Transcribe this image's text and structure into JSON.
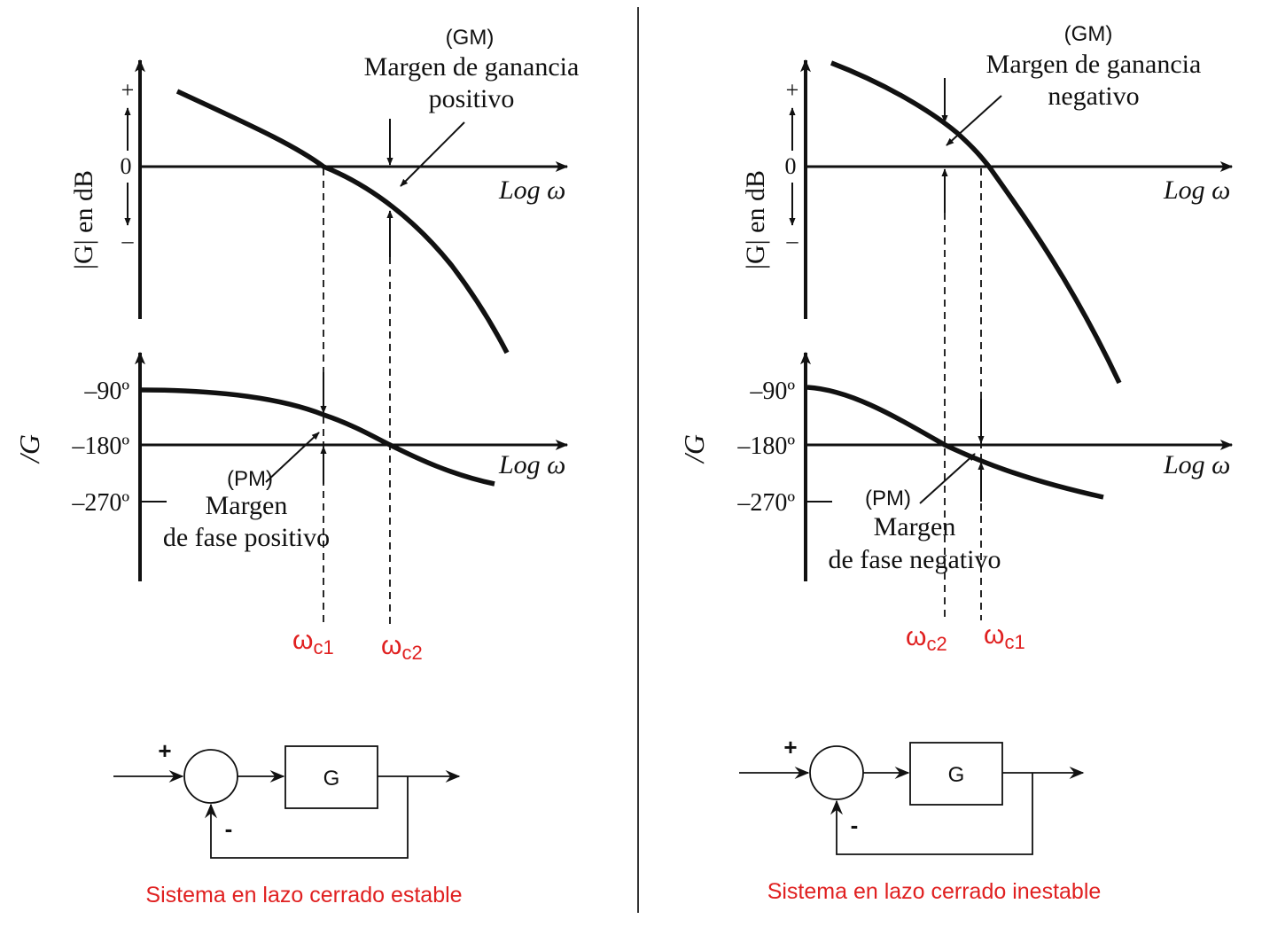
{
  "colors": {
    "ink": "#111111",
    "accent_red": "#e02020",
    "background": "#ffffff"
  },
  "left": {
    "gm_tag": "(GM)",
    "gm_line1": "Margen de ganancia",
    "gm_line2": "positivo",
    "pm_tag": "(PM)",
    "pm_line1": "Margen",
    "pm_line2": "de fase positivo",
    "wc1_base": "ω",
    "wc1_sub": "c1",
    "wc2_base": "ω",
    "wc2_sub": "c2",
    "block_label": "G",
    "plus_sign": "+",
    "minus_sign": "-",
    "caption": "Sistema en lazo cerrado estable"
  },
  "right": {
    "gm_tag": "(GM)",
    "gm_line1": "Margen de ganancia",
    "gm_line2": "negativo",
    "pm_tag": "(PM)",
    "pm_line1": "Margen",
    "pm_line2": "de fase negativo",
    "wc2_base": "ω",
    "wc2_sub": "c2",
    "wc1_base": "ω",
    "wc1_sub": "c1",
    "block_label": "G",
    "plus_sign": "+",
    "minus_sign": "-",
    "caption": "Sistema en lazo cerrado inestable"
  },
  "axes": {
    "mag_ylabel": "|G| en dB",
    "phase_ylabel": "/G",
    "xlabel": "Log ω",
    "tick_plus": "+",
    "tick_zero": "0",
    "tick_minus": "–",
    "tick_m90": "–90º",
    "tick_m180": "–180º",
    "tick_m270": "–270º"
  }
}
